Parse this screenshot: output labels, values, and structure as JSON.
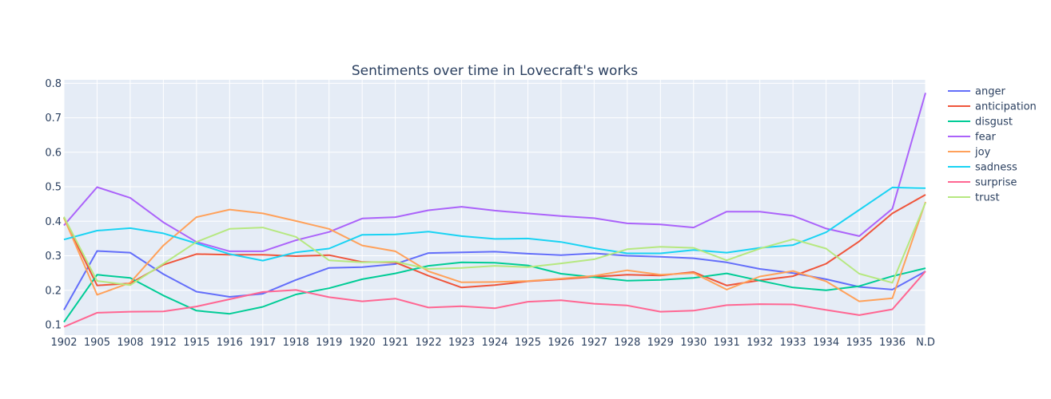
{
  "chart_data": {
    "type": "line",
    "title": "Sentiments over time in Lovecraft's works",
    "xlabel": "",
    "ylabel": "",
    "x": [
      "1902",
      "1905",
      "1908",
      "1912",
      "1915",
      "1916",
      "1917",
      "1918",
      "1919",
      "1920",
      "1921",
      "1922",
      "1923",
      "1924",
      "1925",
      "1926",
      "1927",
      "1928",
      "1929",
      "1930",
      "1931",
      "1932",
      "1933",
      "1934",
      "1935",
      "1936",
      "N.D"
    ],
    "ylim": [
      0.07,
      0.81
    ],
    "yticks": [
      0.1,
      0.2,
      0.3,
      0.4,
      0.5,
      0.6,
      0.7,
      0.8
    ],
    "ytick_labels": [
      "0.1",
      "0.2",
      "0.3",
      "0.4",
      "0.5",
      "0.6",
      "0.7",
      "0.8"
    ],
    "grid": true,
    "legend_position": "top-right",
    "series": [
      {
        "name": "anger",
        "color": "#636efa",
        "values": [
          0.143,
          0.314,
          0.309,
          0.247,
          0.196,
          0.181,
          0.19,
          0.23,
          0.265,
          0.267,
          0.276,
          0.308,
          0.31,
          0.312,
          0.306,
          0.302,
          0.307,
          0.3,
          0.297,
          0.293,
          0.281,
          0.262,
          0.25,
          0.232,
          0.21,
          0.202,
          0.255
        ]
      },
      {
        "name": "anticipation",
        "color": "#EF553B",
        "values": [
          0.41,
          0.214,
          0.22,
          0.274,
          0.305,
          0.303,
          0.303,
          0.299,
          0.302,
          0.282,
          0.281,
          0.242,
          0.208,
          0.215,
          0.226,
          0.232,
          0.239,
          0.245,
          0.243,
          0.253,
          0.214,
          0.229,
          0.241,
          0.277,
          0.342,
          0.423,
          0.477
        ]
      },
      {
        "name": "disgust",
        "color": "#00cc96",
        "values": [
          0.108,
          0.245,
          0.236,
          0.185,
          0.141,
          0.132,
          0.152,
          0.188,
          0.206,
          0.232,
          0.249,
          0.271,
          0.281,
          0.28,
          0.272,
          0.248,
          0.238,
          0.228,
          0.23,
          0.236,
          0.249,
          0.228,
          0.208,
          0.2,
          0.212,
          0.241,
          0.264
        ]
      },
      {
        "name": "fear",
        "color": "#ab63fa",
        "values": [
          0.388,
          0.499,
          0.468,
          0.397,
          0.34,
          0.313,
          0.313,
          0.345,
          0.369,
          0.408,
          0.412,
          0.432,
          0.442,
          0.431,
          0.423,
          0.415,
          0.409,
          0.394,
          0.391,
          0.382,
          0.428,
          0.428,
          0.416,
          0.379,
          0.357,
          0.436,
          0.772
        ]
      },
      {
        "name": "joy",
        "color": "#FFA15A",
        "values": [
          0.41,
          0.187,
          0.222,
          0.33,
          0.412,
          0.434,
          0.423,
          0.401,
          0.378,
          0.33,
          0.313,
          0.255,
          0.223,
          0.224,
          0.227,
          0.234,
          0.242,
          0.258,
          0.245,
          0.25,
          0.202,
          0.24,
          0.256,
          0.226,
          0.168,
          0.177,
          0.456
        ]
      },
      {
        "name": "sadness",
        "color": "#19d3f3",
        "values": [
          0.347,
          0.373,
          0.38,
          0.365,
          0.336,
          0.305,
          0.286,
          0.31,
          0.321,
          0.361,
          0.362,
          0.37,
          0.357,
          0.349,
          0.35,
          0.34,
          0.322,
          0.307,
          0.307,
          0.317,
          0.309,
          0.323,
          0.331,
          0.368,
          0.433,
          0.498,
          0.496
        ]
      },
      {
        "name": "surprise",
        "color": "#FF6692",
        "values": [
          0.094,
          0.135,
          0.138,
          0.139,
          0.153,
          0.174,
          0.195,
          0.201,
          0.18,
          0.168,
          0.176,
          0.15,
          0.154,
          0.148,
          0.167,
          0.171,
          0.161,
          0.156,
          0.138,
          0.141,
          0.157,
          0.16,
          0.159,
          0.143,
          0.128,
          0.145,
          0.255
        ]
      },
      {
        "name": "trust",
        "color": "#B6E880",
        "values": [
          0.413,
          0.227,
          0.215,
          0.277,
          0.34,
          0.378,
          0.382,
          0.355,
          0.287,
          0.281,
          0.283,
          0.262,
          0.265,
          0.271,
          0.267,
          0.278,
          0.29,
          0.319,
          0.326,
          0.323,
          0.287,
          0.321,
          0.348,
          0.321,
          0.248,
          0.222,
          0.454
        ]
      }
    ]
  }
}
